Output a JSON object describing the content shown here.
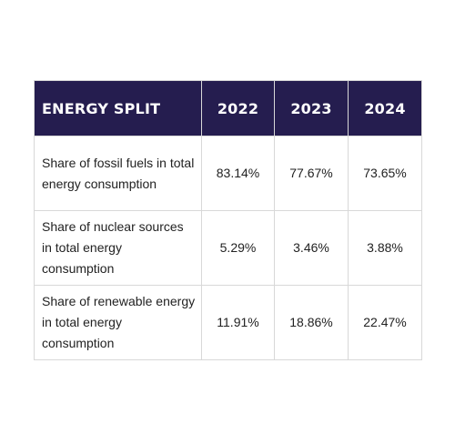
{
  "chart_data": {
    "type": "table",
    "columns": [
      "ENERGY SPLIT",
      "2022",
      "2023",
      "2024"
    ],
    "rows": [
      {
        "label": "Share of fossil fuels in total energy consumption",
        "values": [
          "83.14%",
          "77.67%",
          "73.65%"
        ]
      },
      {
        "label": "Share of nuclear sources in total energy consumption",
        "values": [
          "5.29%",
          "3.46%",
          "3.88%"
        ]
      },
      {
        "label": "Share of renewable energy in total energy consumption",
        "values": [
          "11.91%",
          "18.86%",
          "22.47%"
        ]
      }
    ]
  },
  "colors": {
    "header_background": "#251d4f",
    "header_text": "#ffffff",
    "grid_lines": "#d8d8d8",
    "body_text": "#222222"
  }
}
